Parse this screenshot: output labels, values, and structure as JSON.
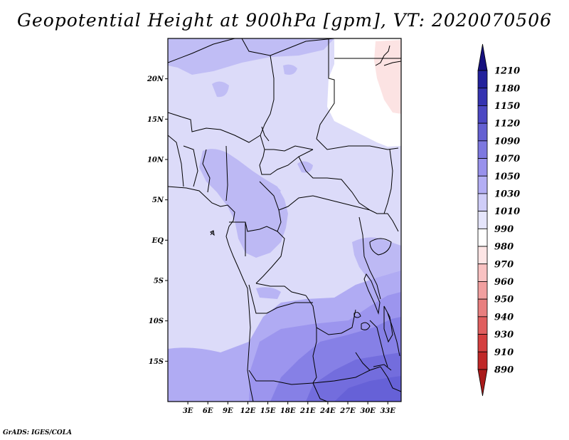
{
  "title": "Geopotential Height at 900hPa [gpm], VT: 2020070506",
  "footer": "GrADS: IGES/COLA",
  "map": {
    "lon_range": [
      0,
      35
    ],
    "lat_range": [
      -20,
      25
    ],
    "x_ticks": [
      {
        "value": 3,
        "label": "3E"
      },
      {
        "value": 6,
        "label": "6E"
      },
      {
        "value": 9,
        "label": "9E"
      },
      {
        "value": 12,
        "label": "12E"
      },
      {
        "value": 15,
        "label": "15E"
      },
      {
        "value": 18,
        "label": "18E"
      },
      {
        "value": 21,
        "label": "21E"
      },
      {
        "value": 24,
        "label": "24E"
      },
      {
        "value": 27,
        "label": "27E"
      },
      {
        "value": 30,
        "label": "30E"
      },
      {
        "value": 33,
        "label": "33E"
      }
    ],
    "y_ticks": [
      {
        "value": 20,
        "label": "20N"
      },
      {
        "value": 15,
        "label": "15N"
      },
      {
        "value": 10,
        "label": "10N"
      },
      {
        "value": 5,
        "label": "5N"
      },
      {
        "value": 0,
        "label": "EQ"
      },
      {
        "value": -5,
        "label": "5S"
      },
      {
        "value": -10,
        "label": "10S"
      },
      {
        "value": -15,
        "label": "15S"
      }
    ]
  },
  "colorbar": {
    "levels": [
      {
        "label": "1210",
        "color": "#16107e"
      },
      {
        "label": "1180",
        "color": "#23219c"
      },
      {
        "label": "1150",
        "color": "#3533b1"
      },
      {
        "label": "1120",
        "color": "#4c48c3"
      },
      {
        "label": "1090",
        "color": "#6460d2"
      },
      {
        "label": "1070",
        "color": "#7d78e0"
      },
      {
        "label": "1050",
        "color": "#9891ec"
      },
      {
        "label": "1030",
        "color": "#b3aef4"
      },
      {
        "label": "1010",
        "color": "#cfcdf8"
      },
      {
        "label": "990",
        "color": "#e5e5fb"
      },
      {
        "label": "980",
        "color": "#ffffff"
      },
      {
        "label": "970",
        "color": "#fde5e5"
      },
      {
        "label": "960",
        "color": "#f9c2c2"
      },
      {
        "label": "950",
        "color": "#f19f9f"
      },
      {
        "label": "940",
        "color": "#e87f7f"
      },
      {
        "label": "930",
        "color": "#e05f5f"
      },
      {
        "label": "910",
        "color": "#d43f3f"
      },
      {
        "label": "890",
        "color": "#c02828"
      },
      {
        "label": "",
        "color": "#a91a1a"
      }
    ]
  }
}
